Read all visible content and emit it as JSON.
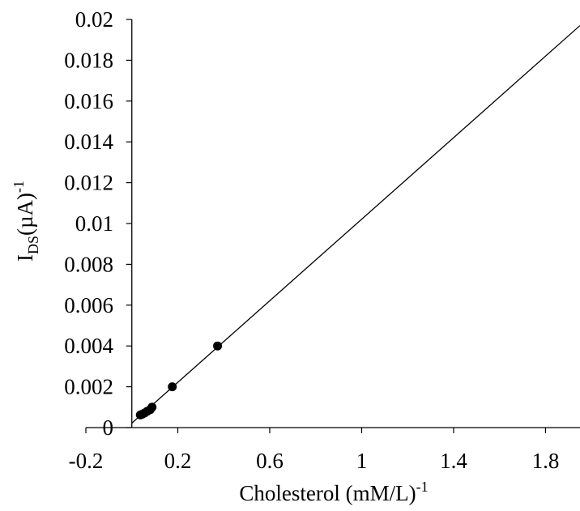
{
  "chart_data": {
    "type": "scatter",
    "xlabel": {
      "text": "Cholesterol (mM/L)",
      "superscript": "-1"
    },
    "ylabel": {
      "main": "I",
      "subscript": "DS",
      "tail": "(µA)",
      "superscript": "-1"
    },
    "xlim": [
      -0.2,
      1.95
    ],
    "ylim": [
      0,
      0.02
    ],
    "x_ticks": [
      -0.2,
      0.2,
      0.6,
      1,
      1.4,
      1.8
    ],
    "x_tick_labels": [
      "-0.2",
      "0.2",
      "0.6",
      "1",
      "1.4",
      "1.8"
    ],
    "y_ticks": [
      0,
      0.002,
      0.004,
      0.006,
      0.008,
      0.01,
      0.012,
      0.014,
      0.016,
      0.018,
      0.02
    ],
    "y_tick_labels": [
      "0",
      "0.002",
      "0.004",
      "0.006",
      "0.008",
      "0.01",
      "0.012",
      "0.014",
      "0.016",
      "0.018",
      "0.02"
    ],
    "grid": false,
    "points": [
      {
        "x": 0.037,
        "y": 0.00062
      },
      {
        "x": 0.046,
        "y": 0.00066
      },
      {
        "x": 0.056,
        "y": 0.00072
      },
      {
        "x": 0.067,
        "y": 0.0008
      },
      {
        "x": 0.08,
        "y": 0.00088
      },
      {
        "x": 0.088,
        "y": 0.001
      },
      {
        "x": 0.176,
        "y": 0.002
      },
      {
        "x": 0.373,
        "y": 0.004
      }
    ],
    "fit_line": {
      "x": [
        0,
        1.95
      ],
      "y": [
        0.00022,
        0.0197
      ]
    },
    "colors": {
      "marker": "#000000",
      "line": "#000000",
      "axis": "#000000"
    }
  }
}
